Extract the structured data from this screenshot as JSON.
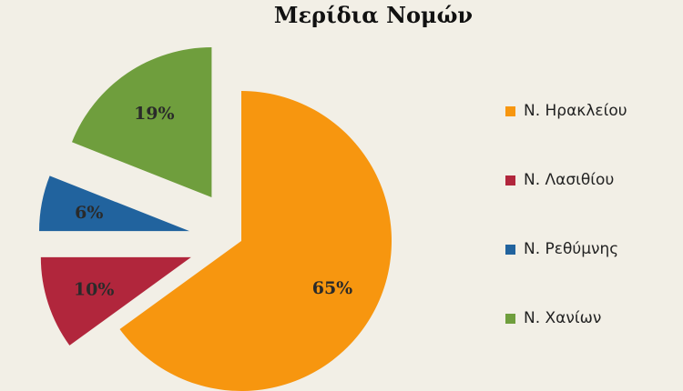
{
  "colors": {
    "background": "#f2efe6"
  },
  "chart_data": {
    "type": "pie",
    "title": "Μερίδια Νομών",
    "slices": [
      {
        "label": "Ν. Ηρακλείου",
        "value": 65,
        "display": "65%",
        "color": "#f7960f"
      },
      {
        "label": "Ν. Λασιθίου",
        "value": 10,
        "display": "10%",
        "color": "#b1263c"
      },
      {
        "label": "Ν. Ρεθύμνης",
        "value": 6,
        "display": "6%",
        "color": "#21639e"
      },
      {
        "label": "Ν. Χανίων",
        "value": 19,
        "display": "19%",
        "color": "#6f9e3d"
      }
    ],
    "legend_position": "right",
    "exploded": true
  }
}
